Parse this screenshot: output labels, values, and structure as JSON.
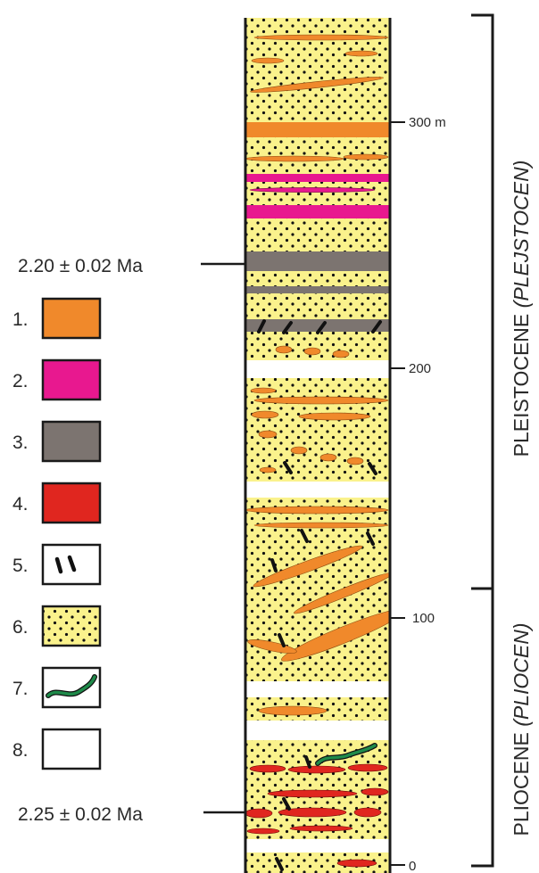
{
  "ages": {
    "upper": "2.20 ± 0.02 Ma",
    "lower": "2.25 ± 0.02 Ma"
  },
  "scale": [
    {
      "label": "300 m",
      "value": 300
    },
    {
      "label": "200",
      "value": 200
    },
    {
      "label": "100",
      "value": 100
    },
    {
      "label": "0",
      "value": 0
    }
  ],
  "epochs": [
    {
      "label": "PLEISTOCENE ",
      "italic": "(PLEJSTOCEN)"
    },
    {
      "label": "PLIOCENE ",
      "italic": "(PLIOCEN)"
    }
  ],
  "legend": [
    {
      "num": "1.",
      "kind": "fill",
      "color": "#f0892b",
      "name": "orange-swatch"
    },
    {
      "num": "2.",
      "kind": "fill",
      "color": "#e8188f",
      "name": "magenta-swatch"
    },
    {
      "num": "3.",
      "kind": "fill",
      "color": "#7c7470",
      "name": "gray-swatch"
    },
    {
      "num": "4.",
      "kind": "fill",
      "color": "#e0261f",
      "name": "red-swatch"
    },
    {
      "num": "5.",
      "kind": "ticks",
      "color": "#ffffff",
      "name": "black-ticks-swatch"
    },
    {
      "num": "6.",
      "kind": "dots",
      "color": "#faf28c",
      "name": "dotted-sand-swatch"
    },
    {
      "num": "7.",
      "kind": "wave",
      "color": "#ffffff",
      "name": "green-wave-swatch"
    },
    {
      "num": "8.",
      "kind": "fill",
      "color": "#ffffff",
      "name": "white-swatch"
    }
  ],
  "colors": {
    "sand": "#faf28c",
    "orange": "#f0892b",
    "magenta": "#e8188f",
    "gray": "#7c7470",
    "red": "#e0261f",
    "green": "#1f8a4a",
    "line": "#1a1a1a"
  }
}
